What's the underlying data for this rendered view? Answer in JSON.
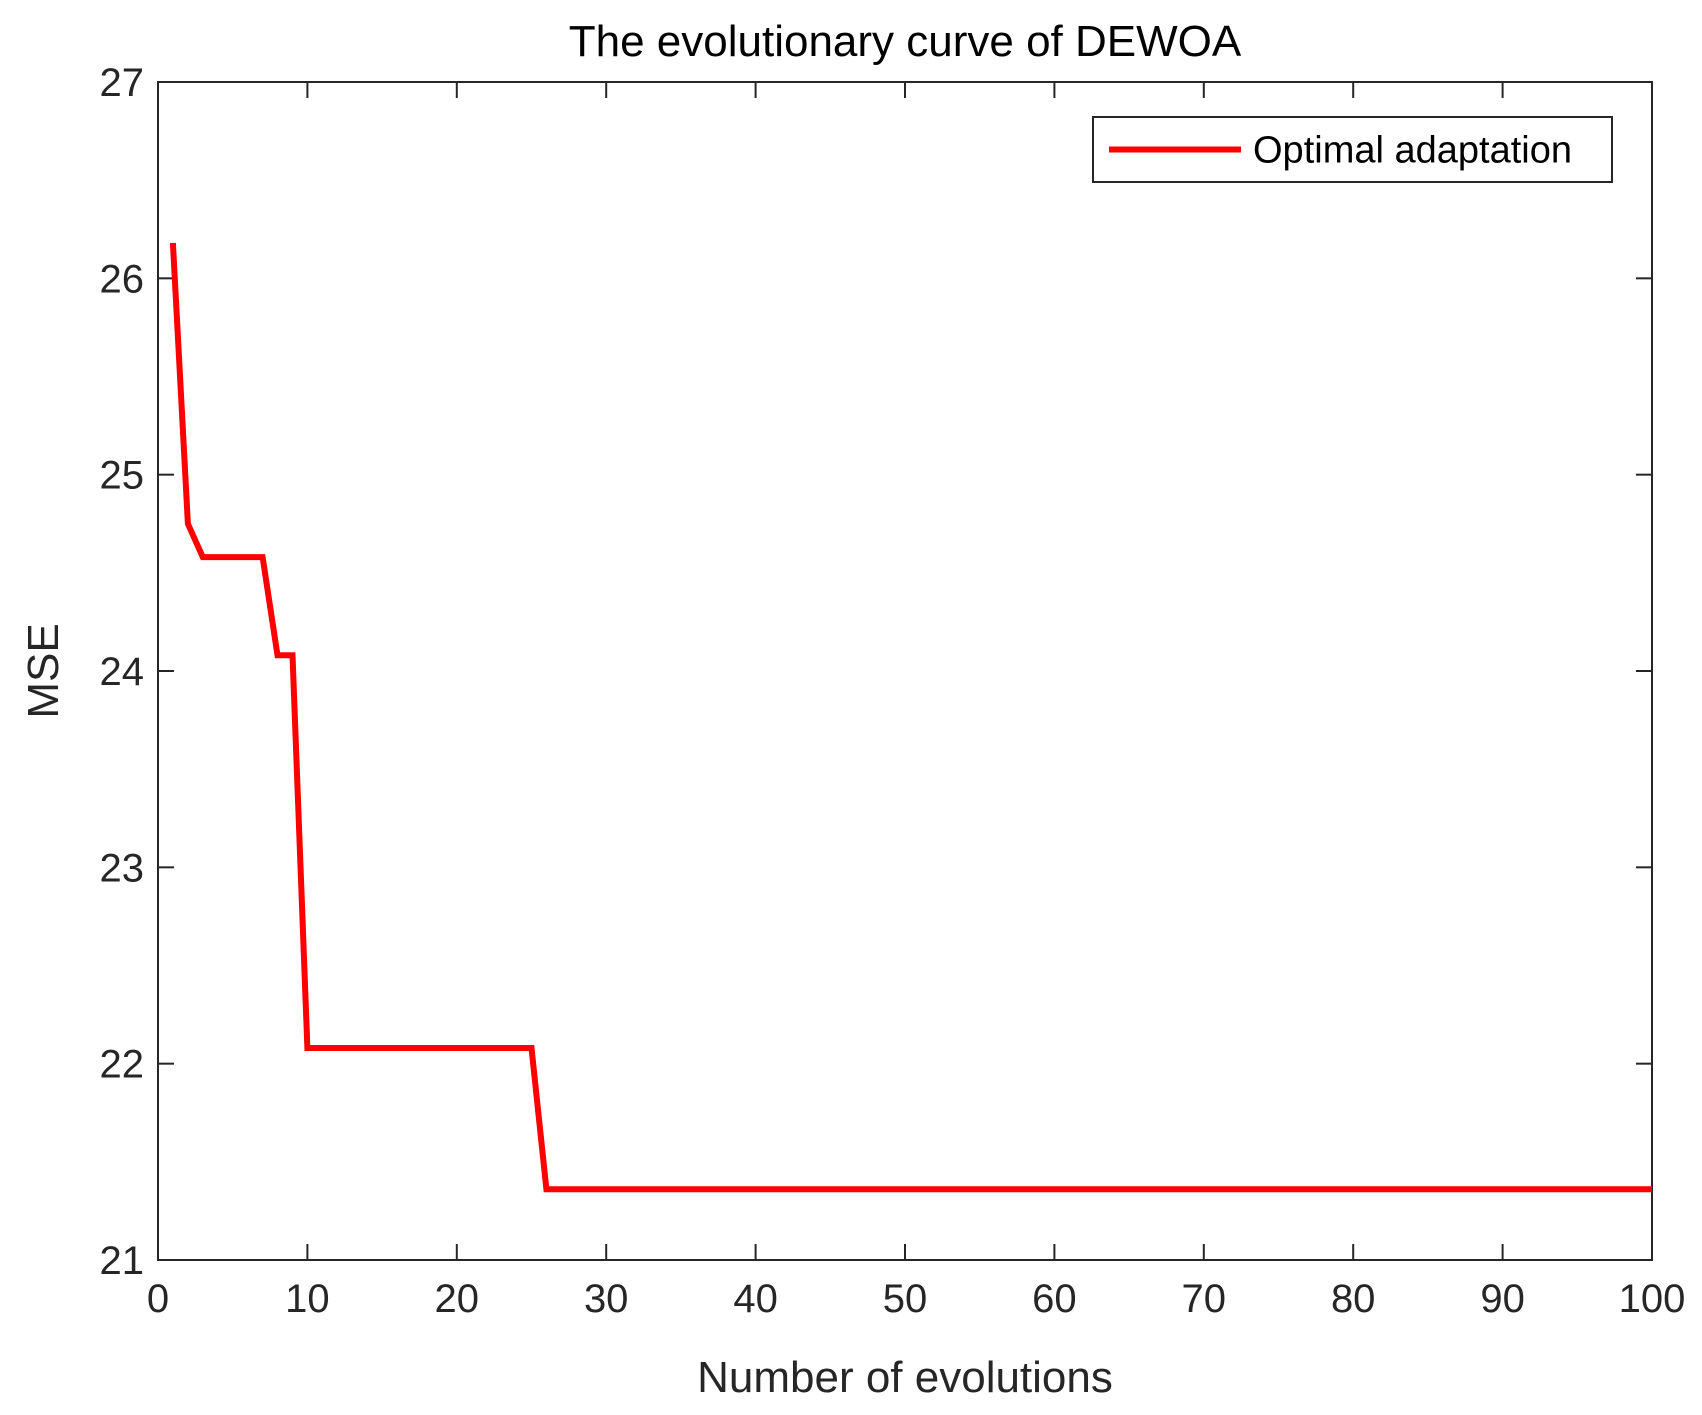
{
  "chart_data": {
    "type": "line",
    "title": "The evolutionary curve of DEWOA",
    "xlabel": "Number of evolutions",
    "ylabel": "MSE",
    "xlim": [
      0,
      100
    ],
    "ylim": [
      21,
      27
    ],
    "xticks": [
      0,
      10,
      20,
      30,
      40,
      50,
      60,
      70,
      80,
      90,
      100
    ],
    "yticks": [
      21,
      22,
      23,
      24,
      25,
      26,
      27
    ],
    "grid": false,
    "legend_position": "top-right",
    "series": [
      {
        "name": "Optimal adaptation",
        "color": "#ff0000",
        "x": [
          1,
          2,
          3,
          4,
          5,
          6,
          7,
          8,
          9,
          10,
          11,
          15,
          20,
          25,
          26,
          30,
          40,
          50,
          60,
          70,
          80,
          90,
          100
        ],
        "y": [
          26.18,
          24.75,
          24.58,
          24.58,
          24.58,
          24.58,
          24.58,
          24.08,
          24.08,
          22.08,
          22.08,
          22.08,
          22.08,
          22.08,
          21.36,
          21.36,
          21.36,
          21.36,
          21.36,
          21.36,
          21.36,
          21.36,
          21.36
        ]
      }
    ]
  }
}
